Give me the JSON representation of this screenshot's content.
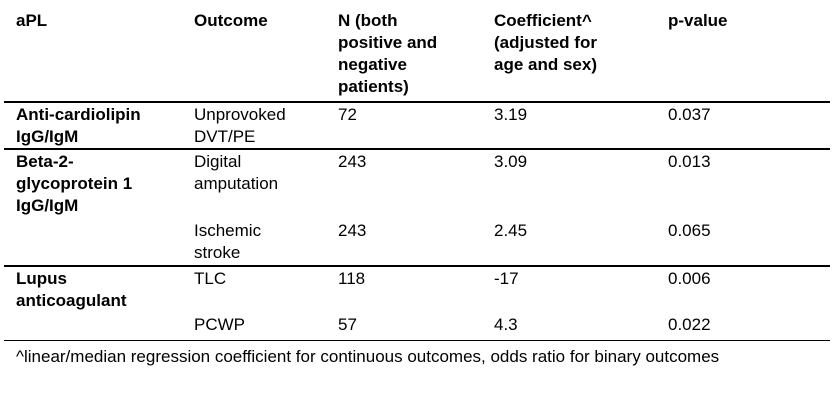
{
  "headers": {
    "apl": "aPL",
    "outcome": "Outcome",
    "n": "N (both\npositive and\nnegative\npatients)",
    "coef": "Coefficient^\n(adjusted for\nage and sex)",
    "p": "p-value"
  },
  "rows": [
    {
      "apl": "Anti-cardiolipin\nIgG/IgM",
      "outcome": "Unprovoked\nDVT/PE",
      "n": "72",
      "coef": "3.19",
      "p": "0.037"
    },
    {
      "apl": "Beta-2-\nglycoprotein 1\nIgG/IgM",
      "outcome": "Digital\namputation",
      "n": "243",
      "coef": "3.09",
      "p": "0.013"
    },
    {
      "apl": "",
      "outcome": "Ischemic\nstroke",
      "n": "243",
      "coef": "2.45",
      "p": "0.065"
    },
    {
      "apl": "Lupus\nanticoagulant",
      "outcome": "TLC",
      "n": "118",
      "coef": "-17",
      "p": "0.006"
    },
    {
      "apl": "",
      "outcome": "PCWP",
      "n": "57",
      "coef": "4.3",
      "p": "0.022"
    }
  ],
  "footnote": "^linear/median regression coefficient for continuous outcomes, odds ratio for binary outcomes"
}
